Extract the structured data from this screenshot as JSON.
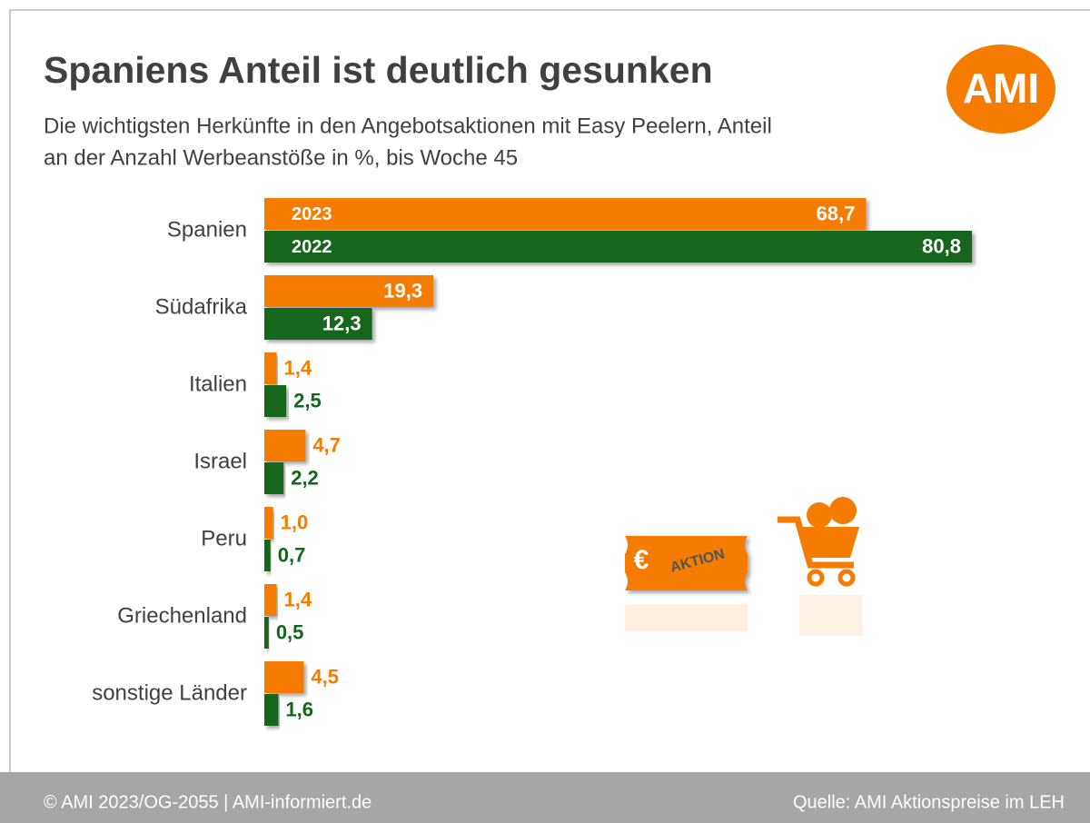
{
  "chart_data": {
    "type": "barh",
    "title": "Spaniens Anteil ist deutlich gesunken",
    "subtitle": [
      "Die wichtigsten Herkünfte in den Angebotsaktionen mit Easy Peelern, Anteil",
      "an der Anzahl Werbeanstöße in %, bis Woche 45"
    ],
    "categories": [
      "Spanien",
      "Südafrika",
      "Italien",
      "Israel",
      "Peru",
      "Griechenland",
      "sonstige Länder"
    ],
    "series": [
      {
        "name": "2023",
        "color": "#f57c00",
        "values": [
          68.7,
          19.3,
          1.4,
          4.7,
          1.0,
          1.4,
          4.5
        ],
        "value_labels": [
          "68,7",
          "19,3",
          "1,4",
          "4,7",
          "1,0",
          "1,4",
          "4,5"
        ]
      },
      {
        "name": "2022",
        "color": "#12661c",
        "values": [
          80.8,
          12.3,
          2.5,
          2.2,
          0.7,
          0.5,
          1.6
        ],
        "value_labels": [
          "80,8",
          "12,3",
          "2,5",
          "2,2",
          "0,7",
          "0,5",
          "1,6"
        ]
      }
    ]
  },
  "logo": "AMI",
  "badge": {
    "currency": "€",
    "text": "AKTION"
  },
  "footer": {
    "left": "© AMI 2023/OG-2055 | AMI-informiert.de",
    "right": "Quelle: AMI Aktionspreise im LEH"
  }
}
